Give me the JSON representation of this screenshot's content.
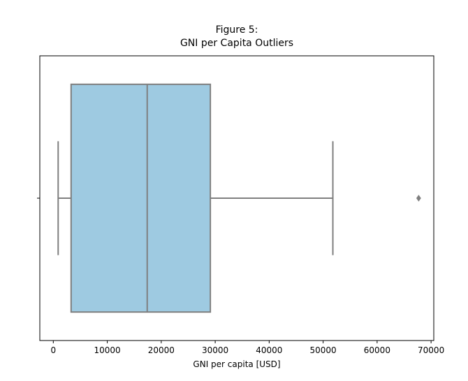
{
  "chart_data": {
    "type": "boxplot",
    "title_line1": "Figure 5:",
    "title_line2": "GNI per Capita Outliers",
    "xlabel": "GNI per capita [USD]",
    "ylabel": "",
    "xlim": [
      -2500,
      70500
    ],
    "x_ticks": [
      0,
      10000,
      20000,
      30000,
      40000,
      50000,
      60000,
      70000
    ],
    "x_tick_labels": [
      "0",
      "10000",
      "20000",
      "30000",
      "40000",
      "50000",
      "60000",
      "70000"
    ],
    "grid": false,
    "orientation": "horizontal",
    "box": {
      "whisker_low": 900,
      "q1": 3300,
      "median": 17400,
      "q3": 29100,
      "whisker_high": 51800,
      "outliers": [
        67700
      ]
    },
    "colors": {
      "box_fill": "#9ecae1",
      "line": "#7f7f7f",
      "axes": "#000000"
    }
  }
}
